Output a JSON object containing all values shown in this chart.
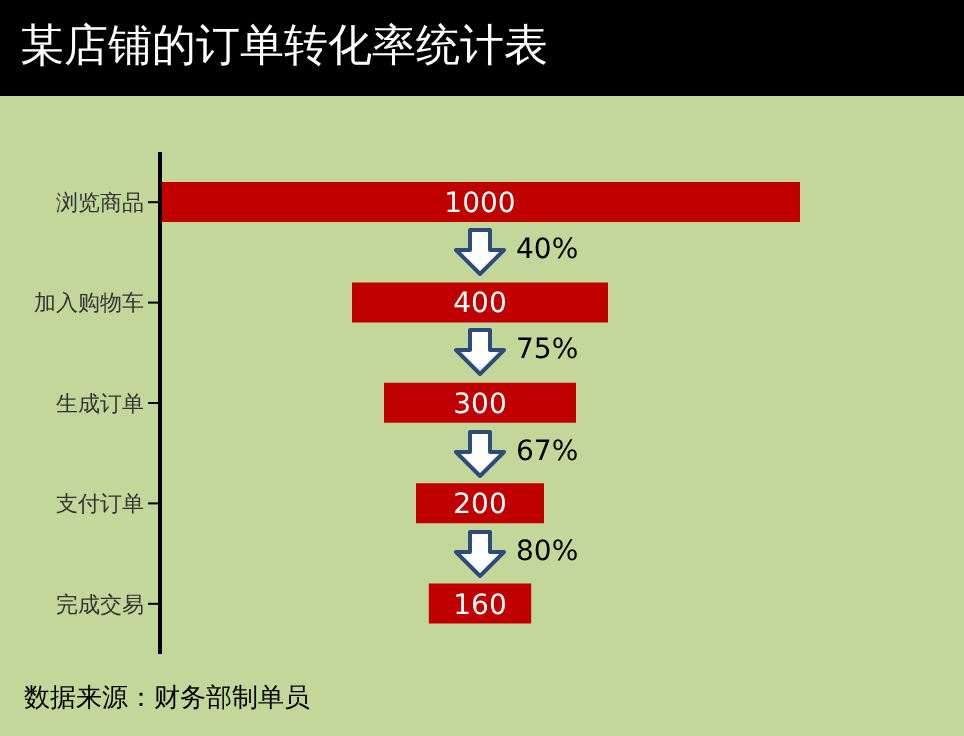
{
  "chart_data": {
    "type": "other",
    "title": "某店铺的订单转化率统计表",
    "categories": [
      "浏览商品",
      "加入购物车",
      "生成订单",
      "支付订单",
      "完成交易"
    ],
    "values": [
      1000,
      400,
      300,
      200,
      160
    ],
    "color": "#c00000",
    "data_labels": true,
    "annotations": [
      "40%",
      "75%",
      "67%",
      "80%",
      "数据来源：财务部制单员"
    ]
  }
}
